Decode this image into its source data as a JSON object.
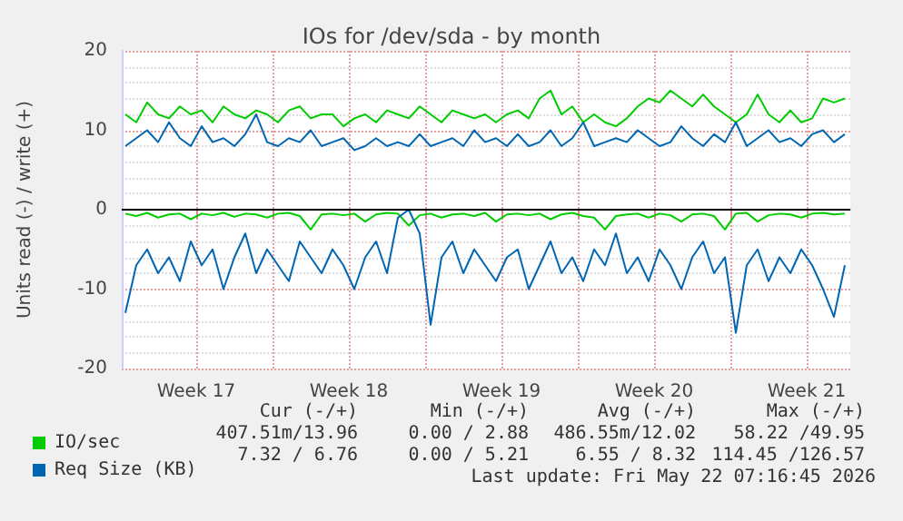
{
  "chart_data": {
    "type": "line",
    "title": "IOs for /dev/sda - by month",
    "ylabel": "Units read (-) / write (+)",
    "x": [
      "2026-04-20T06:00",
      "2026-04-20T18:00",
      "2026-04-21T06:00",
      "2026-04-21T18:00",
      "2026-04-22T06:00",
      "2026-04-22T18:00",
      "2026-04-23T06:00",
      "2026-04-23T18:00",
      "2026-04-24T06:00",
      "2026-04-24T18:00",
      "2026-04-25T06:00",
      "2026-04-25T18:00",
      "2026-04-26T06:00",
      "2026-04-26T18:00",
      "2026-04-27T06:00",
      "2026-04-27T18:00",
      "2026-04-28T06:00",
      "2026-04-28T18:00",
      "2026-04-29T06:00",
      "2026-04-29T18:00",
      "2026-04-30T06:00",
      "2026-04-30T18:00",
      "2026-05-01T06:00",
      "2026-05-01T18:00",
      "2026-05-02T06:00",
      "2026-05-02T18:00",
      "2026-05-03T06:00",
      "2026-05-03T18:00",
      "2026-05-04T06:00",
      "2026-05-04T18:00",
      "2026-05-05T06:00",
      "2026-05-05T18:00",
      "2026-05-06T06:00",
      "2026-05-06T18:00",
      "2026-05-07T06:00",
      "2026-05-07T18:00",
      "2026-05-08T06:00",
      "2026-05-08T18:00",
      "2026-05-09T06:00",
      "2026-05-09T18:00",
      "2026-05-10T06:00",
      "2026-05-10T18:00",
      "2026-05-11T06:00",
      "2026-05-11T18:00",
      "2026-05-12T06:00",
      "2026-05-12T18:00",
      "2026-05-13T06:00",
      "2026-05-13T18:00",
      "2026-05-14T06:00",
      "2026-05-14T18:00",
      "2026-05-15T06:00",
      "2026-05-15T18:00",
      "2026-05-16T06:00",
      "2026-05-16T18:00",
      "2026-05-17T06:00",
      "2026-05-17T18:00",
      "2026-05-18T06:00",
      "2026-05-18T18:00",
      "2026-05-19T06:00",
      "2026-05-19T18:00",
      "2026-05-20T06:00",
      "2026-05-20T18:00",
      "2026-05-21T06:00",
      "2026-05-21T18:00",
      "2026-05-22T06:00",
      "2026-05-22T18:00",
      "2026-05-23T06:00"
    ],
    "series": [
      {
        "name": "IO/sec",
        "color": "#00cc00",
        "values": [
          12,
          11,
          13.5,
          12,
          11.5,
          13,
          12,
          12.5,
          11,
          13,
          12,
          11.5,
          12.5,
          12,
          11,
          12.5,
          13,
          11.5,
          12,
          12,
          10.5,
          11.5,
          12,
          11,
          12.5,
          12,
          11.5,
          13,
          12,
          11,
          12.5,
          12,
          11.5,
          12,
          11,
          12,
          12.5,
          11.5,
          14,
          15,
          12,
          13,
          11,
          12,
          11,
          10.5,
          11.5,
          13,
          14,
          13.5,
          15,
          14,
          13,
          14.5,
          13,
          12,
          11,
          12,
          14.5,
          12,
          11,
          12.5,
          11,
          11.5,
          14,
          13.5,
          14
        ]
      },
      {
        "name": "Req Size (KB)",
        "color": "#0066b3",
        "values": [
          8,
          9,
          10,
          8.5,
          11,
          9,
          8,
          10.5,
          8.5,
          9,
          8,
          9.5,
          12,
          8.5,
          8,
          9,
          8.5,
          10,
          8,
          8.5,
          9,
          7.5,
          8,
          9,
          8,
          8.5,
          8,
          9.5,
          8,
          8.5,
          9,
          8,
          10,
          8.5,
          9,
          8,
          9.5,
          8,
          8.5,
          10,
          8,
          9,
          11,
          8,
          8.5,
          9,
          8.5,
          10,
          9,
          8,
          8.5,
          10.5,
          9,
          8,
          9.5,
          8.5,
          11,
          8,
          9,
          10,
          8.5,
          9,
          8,
          9.5,
          10,
          8.5,
          9.5
        ]
      },
      {
        "color": "#00cc00",
        "values": [
          -0.5,
          -0.8,
          -0.4,
          -1,
          -0.6,
          -0.5,
          -1.2,
          -0.5,
          -0.7,
          -0.4,
          -0.9,
          -0.5,
          -0.6,
          -1,
          -0.5,
          -0.4,
          -0.8,
          -2.5,
          -0.6,
          -0.5,
          -0.7,
          -0.5,
          -1.5,
          -0.6,
          -0.4,
          -0.5,
          -2,
          -0.7,
          -0.5,
          -1,
          -0.6,
          -0.5,
          -0.8,
          -0.4,
          -1.5,
          -0.6,
          -0.5,
          -0.7,
          -0.5,
          -1.2,
          -0.6,
          -0.4,
          -0.8,
          -1,
          -2.5,
          -0.8,
          -0.6,
          -0.5,
          -1,
          -0.5,
          -0.7,
          -1.5,
          -0.6,
          -0.5,
          -0.8,
          -2.5,
          -0.5,
          -0.4,
          -1.5,
          -0.7,
          -0.5,
          -0.6,
          -1,
          -0.5,
          -0.4,
          -0.6,
          -0.5
        ]
      },
      {
        "color": "#0066b3",
        "values": [
          -13,
          -7,
          -5,
          -8,
          -6,
          -9,
          -4,
          -7,
          -5,
          -10,
          -6,
          -3,
          -8,
          -5,
          -7,
          -9,
          -4,
          -6,
          -8,
          -5,
          -7,
          -10,
          -6,
          -4,
          -8,
          -1,
          0,
          -3,
          -14.5,
          -6,
          -4,
          -8,
          -5,
          -7,
          -9,
          -6,
          -5,
          -10,
          -7,
          -4,
          -8,
          -6,
          -9,
          -5,
          -7,
          -3,
          -8,
          -6,
          -9,
          -5,
          -7,
          -10,
          -6,
          -4,
          -8,
          -6,
          -15.5,
          -7,
          -5,
          -9,
          -6,
          -8,
          -5,
          -7,
          -10,
          -13.5,
          -7
        ]
      }
    ],
    "xlim": [
      "2026-04-20T02:00",
      "2026-05-23T12:00"
    ],
    "xticks": [
      {
        "value": "2026-04-23T12:00",
        "label": "Week 17"
      },
      {
        "value": "2026-04-27T00:00",
        "label": null
      },
      {
        "value": "2026-04-30T12:00",
        "label": "Week 18"
      },
      {
        "value": "2026-05-04T00:00",
        "label": null
      },
      {
        "value": "2026-05-07T12:00",
        "label": "Week 19"
      },
      {
        "value": "2026-05-11T00:00",
        "label": null
      },
      {
        "value": "2026-05-14T12:00",
        "label": "Week 20"
      },
      {
        "value": "2026-05-18T00:00",
        "label": null
      },
      {
        "value": "2026-05-21T12:00",
        "label": "Week 21"
      }
    ],
    "ylim": [
      -20,
      20
    ],
    "yticks": [
      -20,
      -10,
      0,
      10,
      20
    ],
    "ref_lines": [
      {
        "axis": "y",
        "value": 0,
        "color": "#000000"
      }
    ],
    "grid": true,
    "legend": "bottom left",
    "marker": "none",
    "line_style": "solid",
    "annotations": [
      "Cur (-/+)",
      "Min (-/+)",
      "Avg (-/+)",
      "Max (-/+)",
      "407.51m/13.96",
      "0.00 / 2.88",
      "486.55m/12.02",
      "58.22 /49.95",
      "7.32 / 6.76",
      "0.00 / 5.21",
      "6.55 / 8.32",
      "114.45 /126.57",
      "Last update: Fri May 22 07:16:45 2026"
    ]
  }
}
